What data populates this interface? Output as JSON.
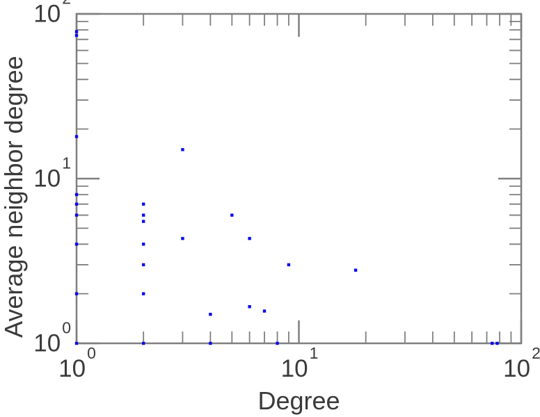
{
  "figure": {
    "background": "#ffffff",
    "axis_color": "#7f7f7f",
    "text_color": "#3a3a3a",
    "point_color": "#0a0aee"
  },
  "chart_data": {
    "type": "scatter",
    "title": "",
    "xlabel": "Degree",
    "ylabel": "Average neighbor degree",
    "xscale": "log",
    "yscale": "log",
    "xlim": [
      1,
      100
    ],
    "ylim": [
      1,
      100
    ],
    "grid": false,
    "legend": null,
    "marker": "square",
    "x_tick_labels": [
      {
        "value": 1,
        "base": "10",
        "exp": "0"
      },
      {
        "value": 10,
        "base": "10",
        "exp": "1"
      },
      {
        "value": 100,
        "base": "10",
        "exp": "2"
      }
    ],
    "y_tick_labels": [
      {
        "value": 1,
        "base": "10",
        "exp": "0"
      },
      {
        "value": 10,
        "base": "10",
        "exp": "1"
      },
      {
        "value": 100,
        "base": "10",
        "exp": "2"
      }
    ],
    "minor_ticks": [
      2,
      3,
      4,
      5,
      6,
      7,
      8,
      9,
      20,
      30,
      40,
      50,
      60,
      70,
      80,
      90
    ],
    "points": [
      {
        "x": 1,
        "y": 78
      },
      {
        "x": 1,
        "y": 74
      },
      {
        "x": 1,
        "y": 18
      },
      {
        "x": 1,
        "y": 8
      },
      {
        "x": 1,
        "y": 7
      },
      {
        "x": 1,
        "y": 6
      },
      {
        "x": 1,
        "y": 4
      },
      {
        "x": 1,
        "y": 2
      },
      {
        "x": 1,
        "y": 1
      },
      {
        "x": 2,
        "y": 7
      },
      {
        "x": 2,
        "y": 6
      },
      {
        "x": 2,
        "y": 5.5
      },
      {
        "x": 2,
        "y": 4
      },
      {
        "x": 2,
        "y": 3
      },
      {
        "x": 2,
        "y": 2
      },
      {
        "x": 2,
        "y": 1
      },
      {
        "x": 3,
        "y": 15
      },
      {
        "x": 3,
        "y": 4.33
      },
      {
        "x": 4,
        "y": 1.5
      },
      {
        "x": 4,
        "y": 1
      },
      {
        "x": 5,
        "y": 6
      },
      {
        "x": 6,
        "y": 4.33
      },
      {
        "x": 6,
        "y": 1.67
      },
      {
        "x": 7,
        "y": 1.57
      },
      {
        "x": 8,
        "y": 1
      },
      {
        "x": 9,
        "y": 3
      },
      {
        "x": 18,
        "y": 2.78
      },
      {
        "x": 74,
        "y": 1
      },
      {
        "x": 78,
        "y": 1
      }
    ]
  }
}
